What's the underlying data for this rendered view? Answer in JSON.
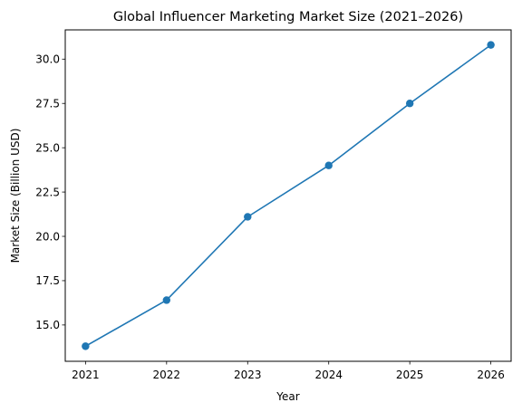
{
  "chart_data": {
    "type": "line",
    "title": "Global Influencer Marketing Market Size (2021–2026)",
    "xlabel": "Year",
    "ylabel": "Market Size (Billion USD)",
    "x": [
      2021,
      2022,
      2023,
      2024,
      2025,
      2026
    ],
    "x_tick_labels": [
      "2021",
      "2022",
      "2023",
      "2024",
      "2025",
      "2026"
    ],
    "series": [
      {
        "values": [
          13.8,
          16.4,
          21.1,
          24.0,
          27.5,
          30.8
        ]
      }
    ],
    "ylim": [
      12.95,
      31.65
    ],
    "xlim": [
      2020.75,
      2026.25
    ],
    "y_ticks": [
      15.0,
      17.5,
      20.0,
      22.5,
      25.0,
      27.5,
      30.0
    ],
    "y_tick_labels": [
      "15.0",
      "17.5",
      "20.0",
      "22.5",
      "25.0",
      "27.5",
      "30.0"
    ],
    "grid": false,
    "line_color": "#1f77b4",
    "marker": "circle"
  }
}
